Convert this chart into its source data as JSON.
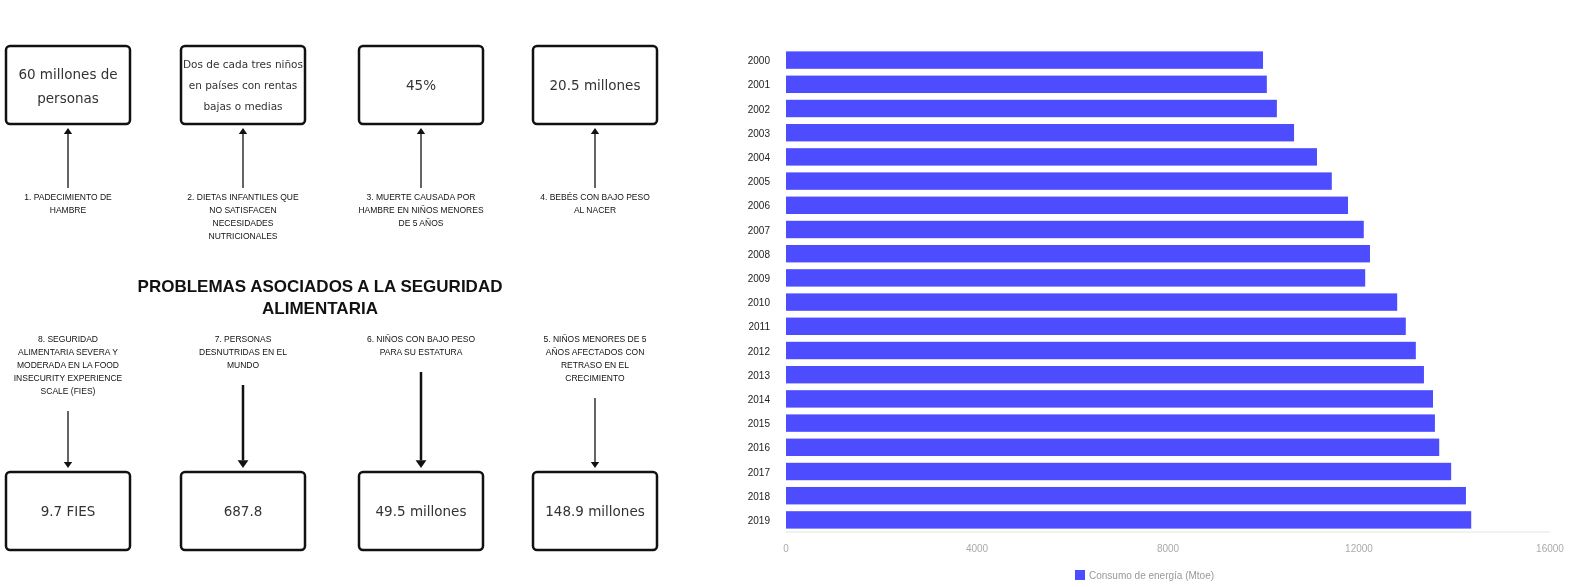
{
  "chart_data": [
    {
      "type": "other",
      "title": "PROBLEMAS ASOCIADOS A LA SEGURIDAD ALIMENTARIA",
      "annotations": [
        "1. PADECIMIENTO DE HAMBRE",
        "60 millones de personas",
        "2. DIETAS INFANTILES QUE NO SATISFACEN NECESIDADES NUTRICIONALES",
        "Dos de cada tres niños en países con rentas bajas o medias",
        "3. MUERTE CAUSADA POR HAMBRE EN NIÑOS MENORES DE 5 AÑOS",
        "45%",
        "4. BEBÉS CON BAJO PESO AL NACER",
        "20.5 millones",
        "5. NIÑOS MENORES DE 5 AÑOS AFECTADOS CON RETRASO EN EL CRECIMIENTO",
        "148.9 millones",
        "6. NIÑOS CON BAJO PESO PARA SU ESTATURA",
        "49.5 millones",
        "7. PERSONAS DESNUTRIDAS EN EL MUNDO",
        "687.8",
        "8. SEGURIDAD ALIMENTARIA SEVERA Y MODERADA EN LA FOOD INSECURITY EXPERIENCE SCALE (FIES)",
        "9.7 FIES"
      ]
    },
    {
      "type": "bar",
      "orientation": "horizontal",
      "categories": [
        "2000",
        "2001",
        "2002",
        "2003",
        "2004",
        "2005",
        "2006",
        "2007",
        "2008",
        "2009",
        "2010",
        "2011",
        "2012",
        "2013",
        "2014",
        "2015",
        "2016",
        "2017",
        "2018",
        "2019"
      ],
      "series": [
        {
          "name": "Consumo de energía (Mtoe)",
          "color": "#4d4dff",
          "values": [
            9990,
            10070,
            10280,
            10640,
            11120,
            11430,
            11770,
            12100,
            12230,
            12130,
            12800,
            12980,
            13190,
            13360,
            13550,
            13590,
            13680,
            13930,
            14240,
            14350
          ]
        }
      ],
      "xlim": [
        0,
        16000
      ],
      "xticks": [
        0,
        4000,
        8000,
        12000,
        16000
      ],
      "legend": "bottom"
    }
  ]
}
